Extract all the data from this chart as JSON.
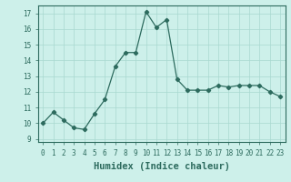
{
  "x": [
    0,
    1,
    2,
    3,
    4,
    5,
    6,
    7,
    8,
    9,
    10,
    11,
    12,
    13,
    14,
    15,
    16,
    17,
    18,
    19,
    20,
    21,
    22,
    23
  ],
  "y": [
    10.0,
    10.7,
    10.2,
    9.7,
    9.6,
    10.6,
    11.5,
    13.6,
    14.5,
    14.5,
    17.1,
    16.1,
    16.6,
    12.8,
    12.1,
    12.1,
    12.1,
    12.4,
    12.3,
    12.4,
    12.4,
    12.4,
    12.0,
    11.7
  ],
  "line_color": "#2d6b5e",
  "marker": "D",
  "markersize": 2.2,
  "linewidth": 0.9,
  "bg_color": "#cdf0ea",
  "grid_color": "#a8d8d0",
  "xlabel": "Humidex (Indice chaleur)",
  "xlabel_fontsize": 7.5,
  "tick_fontsize": 5.5,
  "ylim": [
    8.8,
    17.5
  ],
  "xlim": [
    -0.5,
    23.5
  ],
  "yticks": [
    9,
    10,
    11,
    12,
    13,
    14,
    15,
    16,
    17
  ],
  "xticks": [
    0,
    1,
    2,
    3,
    4,
    5,
    6,
    7,
    8,
    9,
    10,
    11,
    12,
    13,
    14,
    15,
    16,
    17,
    18,
    19,
    20,
    21,
    22,
    23
  ]
}
